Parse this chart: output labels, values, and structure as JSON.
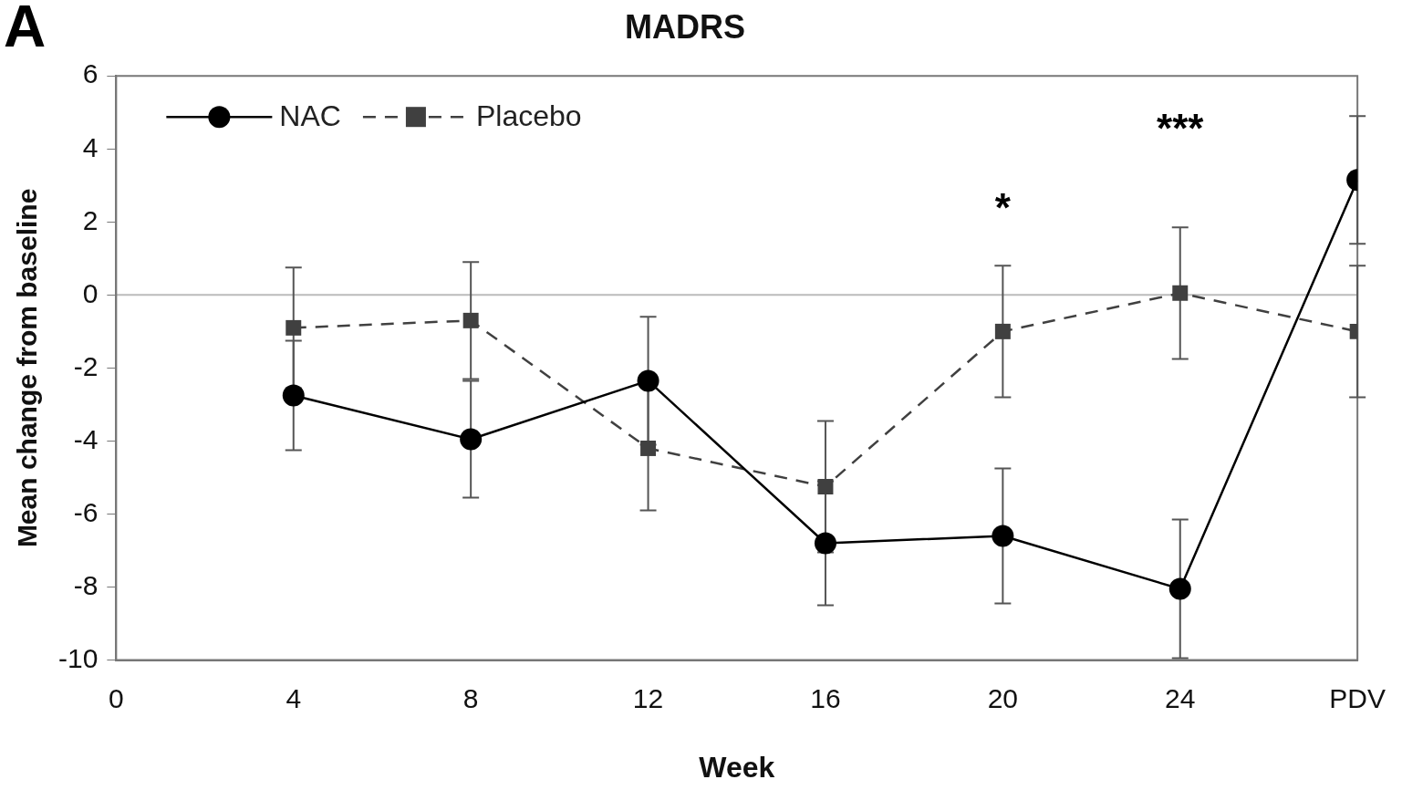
{
  "chart_data": {
    "type": "line",
    "title": "MADRS",
    "xlabel": "Week",
    "ylabel": "Mean change from baseline",
    "x": [
      4,
      8,
      12,
      16,
      20,
      24,
      28
    ],
    "series": [
      {
        "name": "NAC",
        "color": "#000000",
        "marker": "circle",
        "line_style": "solid",
        "values": [
          -2.75,
          -3.95,
          -2.35,
          -6.8,
          -6.6,
          -8.05,
          3.15
        ],
        "errors": [
          1.5,
          1.6,
          1.75,
          1.7,
          1.85,
          1.9,
          1.75
        ]
      },
      {
        "name": "Placebo",
        "color": "#404040",
        "marker": "square",
        "line_style": "dashed",
        "values": [
          -0.9,
          -0.7,
          -4.2,
          -5.25,
          -1.0,
          0.05,
          -1.0
        ],
        "errors": [
          1.65,
          1.6,
          1.7,
          1.8,
          1.8,
          1.8,
          1.8
        ]
      }
    ],
    "xlim": [
      0,
      28
    ],
    "xticks": [
      0,
      4,
      8,
      12,
      16,
      20,
      24,
      {
        "value": 28,
        "label": "PDV"
      }
    ],
    "ylim": [
      -10,
      6
    ],
    "yticks": [
      -10,
      -8,
      -6,
      -4,
      -2,
      0,
      2,
      4,
      6
    ],
    "ref_lines": [
      {
        "axis": "y",
        "value": 0,
        "color": "#bbbbbb"
      }
    ],
    "annotations": [
      "A",
      "*",
      "***"
    ],
    "grid": false,
    "legend": "top left"
  }
}
